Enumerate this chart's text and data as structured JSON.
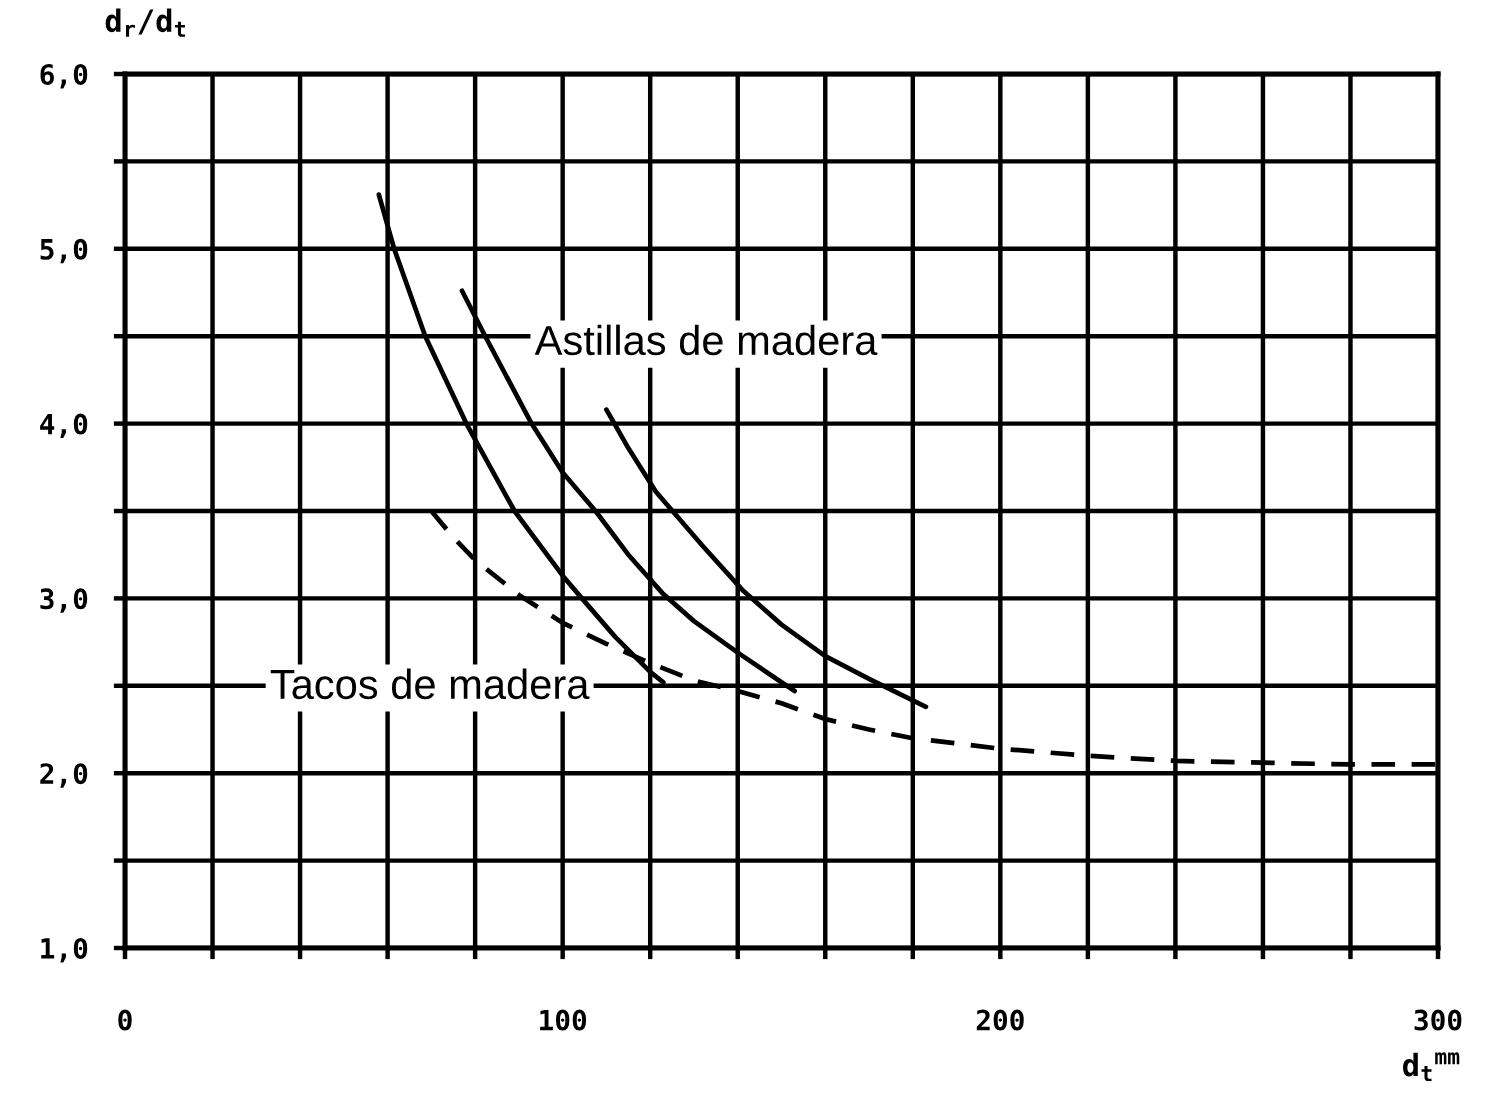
{
  "chart_data": {
    "type": "line",
    "xlabel": "d$_{t}$$^{mm}$",
    "ylabel": "d$_{r}$/d$_{t}$",
    "xlim": [
      0,
      300
    ],
    "ylim": [
      1,
      6
    ],
    "xticks": [
      0,
      {
        "value": 20,
        "label": null
      },
      {
        "value": 40,
        "label": null
      },
      {
        "value": 60,
        "label": null
      },
      {
        "value": 80,
        "label": null
      },
      100,
      {
        "value": 120,
        "label": null
      },
      {
        "value": 140,
        "label": null
      },
      {
        "value": 160,
        "label": null
      },
      {
        "value": 180,
        "label": null
      },
      200,
      {
        "value": 220,
        "label": null
      },
      {
        "value": 240,
        "label": null
      },
      {
        "value": 260,
        "label": null
      },
      {
        "value": 280,
        "label": null
      },
      300
    ],
    "yticks": [
      {
        "value": 1,
        "label": "1,0"
      },
      {
        "value": 1.5,
        "label": null
      },
      {
        "value": 2,
        "label": "2,0"
      },
      {
        "value": 2.5,
        "label": null
      },
      {
        "value": 3,
        "label": "3,0"
      },
      {
        "value": 3.5,
        "label": null
      },
      {
        "value": 4,
        "label": "4,0"
      },
      {
        "value": 4.5,
        "label": null
      },
      {
        "value": 5,
        "label": "5,0"
      },
      {
        "value": 5.5,
        "label": null
      },
      {
        "value": 6,
        "label": "6,0"
      }
    ],
    "grid": true,
    "annotations": [
      "Astillas de madera",
      "Tacos de madera"
    ],
    "series": [
      {
        "color": "#000000",
        "line_style": "solid",
        "x": [
          58,
          61.5,
          68.6,
          78,
          89,
          100,
          104.4,
          112,
          120,
          123
        ],
        "values": [
          5.31,
          5.0,
          4.5,
          4.0,
          3.5,
          3.13,
          3.0,
          2.78,
          2.58,
          2.52
        ]
      },
      {
        "color": "#000000",
        "line_style": "solid",
        "x": [
          77,
          82.3,
          92.9,
          100,
          107.5,
          115,
          122.8,
          130,
          140,
          150,
          153
        ],
        "values": [
          4.76,
          4.5,
          4.0,
          3.72,
          3.5,
          3.25,
          3.03,
          2.87,
          2.69,
          2.52,
          2.47
        ]
      },
      {
        "color": "#000000",
        "line_style": "solid",
        "x": [
          110,
          115,
          121.3,
          132,
          141,
          150,
          160,
          170,
          183
        ],
        "values": [
          4.08,
          3.86,
          3.61,
          3.3,
          3.05,
          2.85,
          2.67,
          2.54,
          2.38
        ]
      },
      {
        "color": "#000000",
        "line_style": "dashed",
        "x": [
          70,
          75,
          80,
          90,
          100,
          110,
          120,
          130,
          140,
          150,
          160,
          170,
          180,
          200,
          220,
          240,
          260,
          280,
          300
        ],
        "values": [
          3.5,
          3.35,
          3.22,
          3.02,
          2.86,
          2.74,
          2.63,
          2.53,
          2.47,
          2.4,
          2.31,
          2.25,
          2.2,
          2.14,
          2.1,
          2.07,
          2.06,
          2.05,
          2.05
        ]
      }
    ]
  }
}
